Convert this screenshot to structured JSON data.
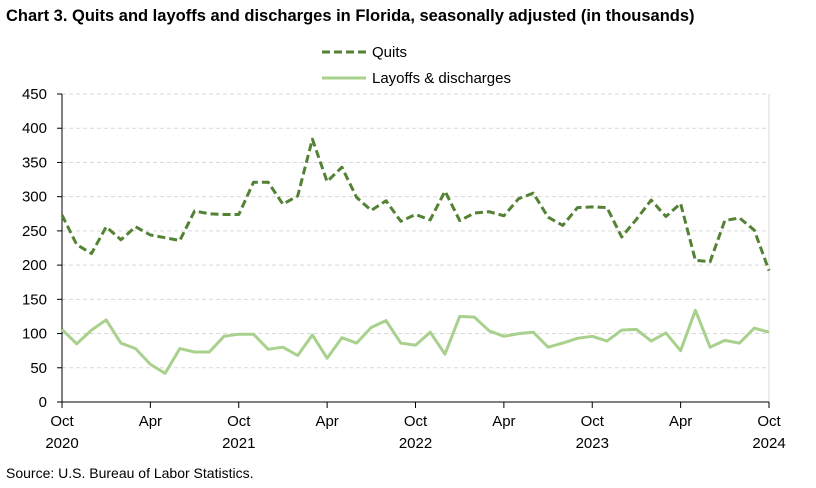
{
  "chart_data": {
    "type": "line",
    "title": "Chart 3. Quits and layoffs and discharges in Florida, seasonally adjusted (in thousands)",
    "xlabel": "",
    "ylabel": "",
    "ylim": [
      0,
      450
    ],
    "yticks": [
      0,
      50,
      100,
      150,
      200,
      250,
      300,
      350,
      400,
      450
    ],
    "grid": true,
    "legend_position": "top-center",
    "x_tick_labels": [
      {
        "index": 0,
        "month": "Oct",
        "year": "2020"
      },
      {
        "index": 6,
        "month": "Apr",
        "year": ""
      },
      {
        "index": 12,
        "month": "Oct",
        "year": "2021"
      },
      {
        "index": 18,
        "month": "Apr",
        "year": ""
      },
      {
        "index": 24,
        "month": "Oct",
        "year": "2022"
      },
      {
        "index": 30,
        "month": "Apr",
        "year": ""
      },
      {
        "index": 36,
        "month": "Oct",
        "year": "2023"
      },
      {
        "index": 42,
        "month": "Apr",
        "year": ""
      },
      {
        "index": 48,
        "month": "Oct",
        "year": "2024"
      }
    ],
    "series": [
      {
        "name": "Quits",
        "color": "#548235",
        "style": "dashed",
        "values": [
          273,
          230,
          217,
          256,
          237,
          256,
          244,
          240,
          236,
          279,
          275,
          274,
          274,
          321,
          321,
          289,
          301,
          384,
          322,
          343,
          299,
          280,
          294,
          264,
          274,
          266,
          308,
          265,
          276,
          278,
          272,
          297,
          305,
          270,
          258,
          284,
          285,
          284,
          241,
          267,
          295,
          271,
          290,
          207,
          205,
          265,
          269,
          251,
          192
        ]
      },
      {
        "name": "Layoffs & discharges",
        "color": "#a9d18e",
        "style": "solid",
        "values": [
          106,
          85,
          105,
          120,
          86,
          78,
          55,
          42,
          78,
          73,
          73,
          96,
          99,
          99,
          77,
          80,
          68,
          98,
          64,
          94,
          86,
          109,
          119,
          86,
          83,
          102,
          70,
          125,
          124,
          104,
          96,
          100,
          102,
          80,
          86,
          93,
          96,
          89,
          105,
          106,
          89,
          101,
          75,
          134,
          80,
          90,
          86,
          108,
          102
        ]
      }
    ]
  },
  "source": "Source: U.S. Bureau of Labor Statistics."
}
